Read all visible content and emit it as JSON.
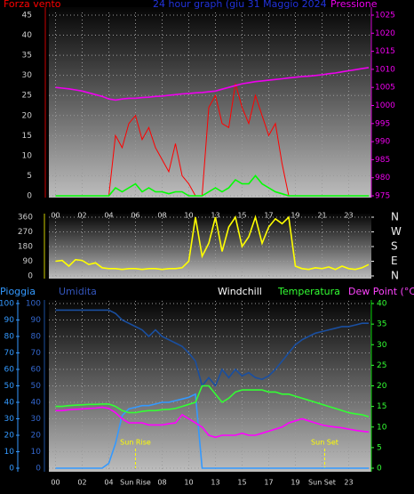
{
  "chart_data": [
    {
      "type": "line",
      "title": "24 hour graph (giu  31 Maggio 2024",
      "ylabel": "Forza vento",
      "y2label": "Pressione",
      "x": [
        0,
        0.5,
        1,
        1.5,
        2,
        2.5,
        3,
        3.5,
        4,
        4.5,
        5,
        5.5,
        6,
        6.5,
        7,
        7.5,
        8,
        8.5,
        9,
        9.5,
        10,
        10.5,
        11,
        11.5,
        12,
        12.5,
        13,
        13.5,
        14,
        14.5,
        15,
        15.5,
        16,
        16.5,
        17,
        17.5,
        18,
        18.5,
        19,
        19.5,
        20,
        20.5,
        21,
        21.5,
        22,
        22.5,
        23,
        23.5
      ],
      "xlim": [
        -0.5,
        23.7
      ],
      "xticks": [
        {
          "value": 0,
          "label": "00"
        },
        {
          "value": 2,
          "label": "02"
        },
        {
          "value": 4,
          "label": "04"
        },
        {
          "value": 6,
          "label": "06"
        },
        {
          "value": 8,
          "label": "08"
        },
        10,
        {
          "value": 12,
          "label": "13"
        },
        {
          "value": 14,
          "label": "15"
        },
        {
          "value": 16,
          "label": "17"
        },
        {
          "value": 18,
          "label": "19"
        },
        {
          "value": 20,
          "label": "21"
        },
        {
          "value": 22,
          "label": "23"
        }
      ],
      "ylim": [
        0,
        45
      ],
      "yticks": [
        0,
        5,
        10,
        15,
        20,
        25,
        30,
        35,
        40,
        45
      ],
      "y2lim": [
        975,
        1025
      ],
      "y2ticks": [
        975,
        980,
        985,
        990,
        995,
        1000,
        1005,
        1010,
        1015,
        1020,
        1025
      ],
      "grid": true,
      "series": [
        {
          "color": "#ff0000",
          "values": [
            0,
            0,
            0,
            0,
            0,
            0,
            0,
            0,
            0,
            15,
            12,
            18,
            20,
            14,
            17,
            12,
            9,
            6,
            13,
            5,
            3,
            0,
            0,
            22,
            25,
            18,
            17,
            28,
            22,
            18,
            25,
            20,
            15,
            18,
            8,
            0,
            0,
            0,
            0,
            0,
            0,
            0,
            0,
            0,
            0,
            0,
            0,
            0
          ]
        },
        {
          "color": "#00ff00",
          "values": [
            0,
            0,
            0,
            0,
            0,
            0,
            0,
            0,
            0,
            2,
            1,
            2,
            3,
            1,
            2,
            1,
            1,
            0.5,
            1,
            1,
            0,
            0,
            0,
            1,
            2,
            1,
            2,
            4,
            3,
            3,
            5,
            3,
            2,
            1,
            0.5,
            0,
            0,
            0,
            0,
            0,
            0,
            0,
            0,
            0,
            0,
            0,
            0,
            0
          ]
        },
        {
          "color": "#ee00ee",
          "axis": "y2",
          "values": [
            1005,
            1004.8,
            1004.6,
            1004.3,
            1004,
            1003.5,
            1003,
            1002.5,
            1001.8,
            1001.5,
            1001.8,
            1002,
            1002,
            1002.2,
            1002.3,
            1002.5,
            1002.6,
            1002.8,
            1003,
            1003.2,
            1003.3,
            1003.5,
            1003.6,
            1003.8,
            1004,
            1004.5,
            1005,
            1005.5,
            1006,
            1006.3,
            1006.6,
            1006.8,
            1007,
            1007.2,
            1007.4,
            1007.6,
            1007.8,
            1008,
            1008.1,
            1008.3,
            1008.5,
            1008.8,
            1009,
            1009.3,
            1009.6,
            1009.9,
            1010.2,
            1010.5
          ]
        }
      ]
    },
    {
      "type": "line",
      "x": [
        0,
        0.5,
        1,
        1.5,
        2,
        2.5,
        3,
        3.5,
        4,
        4.5,
        5,
        5.5,
        6,
        6.5,
        7,
        7.5,
        8,
        8.5,
        9,
        9.5,
        10,
        10.5,
        11,
        11.5,
        12,
        12.5,
        13,
        13.5,
        14,
        14.5,
        15,
        15.5,
        16,
        16.5,
        17,
        17.5,
        18,
        18.5,
        19,
        19.5,
        20,
        20.5,
        21,
        21.5,
        22,
        22.5,
        23,
        23.5
      ],
      "xlim": [
        -0.5,
        23.7
      ],
      "xticks": [
        0,
        2,
        4,
        6,
        8,
        10,
        12,
        14,
        16,
        18,
        20,
        22
      ],
      "ylim": [
        0,
        360
      ],
      "yticks": [
        0,
        90,
        180,
        270,
        360
      ],
      "y2lim": [
        0,
        360
      ],
      "y2ticks": [
        {
          "value": 0,
          "label": "N"
        },
        {
          "value": 90,
          "label": "E"
        },
        {
          "value": 180,
          "label": "S"
        },
        {
          "value": 270,
          "label": "W"
        },
        {
          "value": 360,
          "label": "N"
        }
      ],
      "grid": true,
      "series": [
        {
          "color": "#ffff00",
          "values": [
            90,
            95,
            60,
            100,
            95,
            70,
            80,
            50,
            45,
            45,
            40,
            45,
            45,
            40,
            45,
            45,
            40,
            45,
            45,
            50,
            90,
            360,
            120,
            200,
            360,
            150,
            300,
            360,
            180,
            240,
            360,
            200,
            300,
            350,
            320,
            360,
            60,
            45,
            40,
            50,
            45,
            55,
            40,
            60,
            45,
            40,
            50,
            70
          ]
        }
      ]
    },
    {
      "type": "line",
      "windchill_label": "Windchill",
      "x": [
        0,
        0.5,
        1,
        1.5,
        2,
        2.5,
        3,
        3.5,
        4,
        4.5,
        5,
        5.5,
        6,
        6.5,
        7,
        7.5,
        8,
        8.5,
        9,
        9.5,
        10,
        10.5,
        11,
        11.5,
        12,
        12.5,
        13,
        13.5,
        14,
        14.5,
        15,
        15.5,
        16,
        16.5,
        17,
        17.5,
        18,
        18.5,
        19,
        19.5,
        20,
        20.5,
        21,
        21.5,
        22,
        22.5,
        23,
        23.5
      ],
      "xlim": [
        -0.5,
        23.7
      ],
      "xticks": [
        {
          "value": 0,
          "label": "00"
        },
        {
          "value": 2,
          "label": "02"
        },
        {
          "value": 4,
          "label": "04"
        },
        {
          "value": 6,
          "label": "Sun Rise"
        },
        {
          "value": 8,
          "label": "08"
        },
        10,
        {
          "value": 12,
          "label": "13"
        },
        {
          "value": 14,
          "label": "15"
        },
        {
          "value": 16,
          "label": "17"
        },
        {
          "value": 18,
          "label": "19"
        },
        {
          "value": 20,
          "label": "Sun Set"
        },
        {
          "value": 22,
          "label": "23"
        }
      ],
      "ylim": [
        0,
        100
      ],
      "yticks": [
        0,
        10,
        20,
        30,
        40,
        50,
        60,
        70,
        80,
        90,
        100
      ],
      "y3lim": [
        0,
        100
      ],
      "y3ticks": [
        0,
        10,
        20,
        30,
        40,
        50,
        60,
        70,
        80,
        90,
        100
      ],
      "y2lim": [
        0,
        40
      ],
      "y2ticks": [
        0,
        5,
        10,
        15,
        20,
        25,
        30,
        35,
        40
      ],
      "grid": true,
      "annotations": [
        {
          "text": "Sun Rise",
          "x": 6
        },
        {
          "text": "Sun Set",
          "x": 20.2
        }
      ],
      "series": [
        {
          "name": "Pioggia",
          "color": "#3399ff",
          "axis": "y3",
          "values": [
            0,
            0,
            0,
            0,
            0,
            0,
            0,
            0,
            3,
            15,
            32,
            36,
            37,
            38,
            38,
            39,
            40,
            40,
            41,
            42,
            43,
            45,
            0,
            0,
            0,
            0,
            0,
            0,
            0,
            0,
            0,
            0,
            0,
            0,
            0,
            0,
            0,
            0,
            0,
            0,
            0,
            0,
            0,
            0,
            0,
            0,
            0,
            0
          ]
        },
        {
          "name": "Umidita",
          "color": "#1a4fa0",
          "values": [
            96,
            96,
            96,
            96,
            96,
            96,
            96,
            96,
            96,
            94,
            90,
            88,
            86,
            84,
            80,
            84,
            80,
            78,
            76,
            74,
            70,
            65,
            50,
            55,
            50,
            60,
            55,
            60,
            56,
            58,
            55,
            54,
            56,
            60,
            65,
            70,
            75,
            78,
            80,
            82,
            83,
            84,
            85,
            86,
            86,
            87,
            88,
            88
          ]
        },
        {
          "name": "Temperatura",
          "color": "#33ff33",
          "axis": "y2",
          "values": [
            15,
            15,
            15.2,
            15.3,
            15.4,
            15.5,
            15.5,
            15.6,
            15.6,
            15,
            14,
            13.5,
            13.5,
            13.8,
            14,
            14,
            14.2,
            14.3,
            14.5,
            15,
            15.5,
            16,
            20,
            20,
            18,
            16,
            17,
            18.5,
            19,
            19,
            19,
            19,
            18.5,
            18.5,
            18,
            18,
            17.5,
            17,
            16.5,
            16,
            15.5,
            15,
            14.5,
            14,
            13.5,
            13.2,
            13,
            12.5
          ]
        },
        {
          "name": "Dew Point (°C)",
          "color": "#ff00ff",
          "axis": "y2",
          "values": [
            14,
            14,
            14.2,
            14.3,
            14.4,
            14.5,
            14.6,
            14.8,
            14.5,
            13.5,
            12,
            11,
            11,
            11,
            10.5,
            10.5,
            10.5,
            10.8,
            11,
            13,
            12,
            11,
            10,
            8,
            7.5,
            8,
            8,
            8,
            8.5,
            8,
            8,
            8.5,
            9,
            9.5,
            10,
            11,
            11.5,
            12,
            11.5,
            11,
            10.5,
            10.2,
            10,
            9.8,
            9.5,
            9.2,
            9,
            8.8
          ]
        }
      ]
    }
  ]
}
